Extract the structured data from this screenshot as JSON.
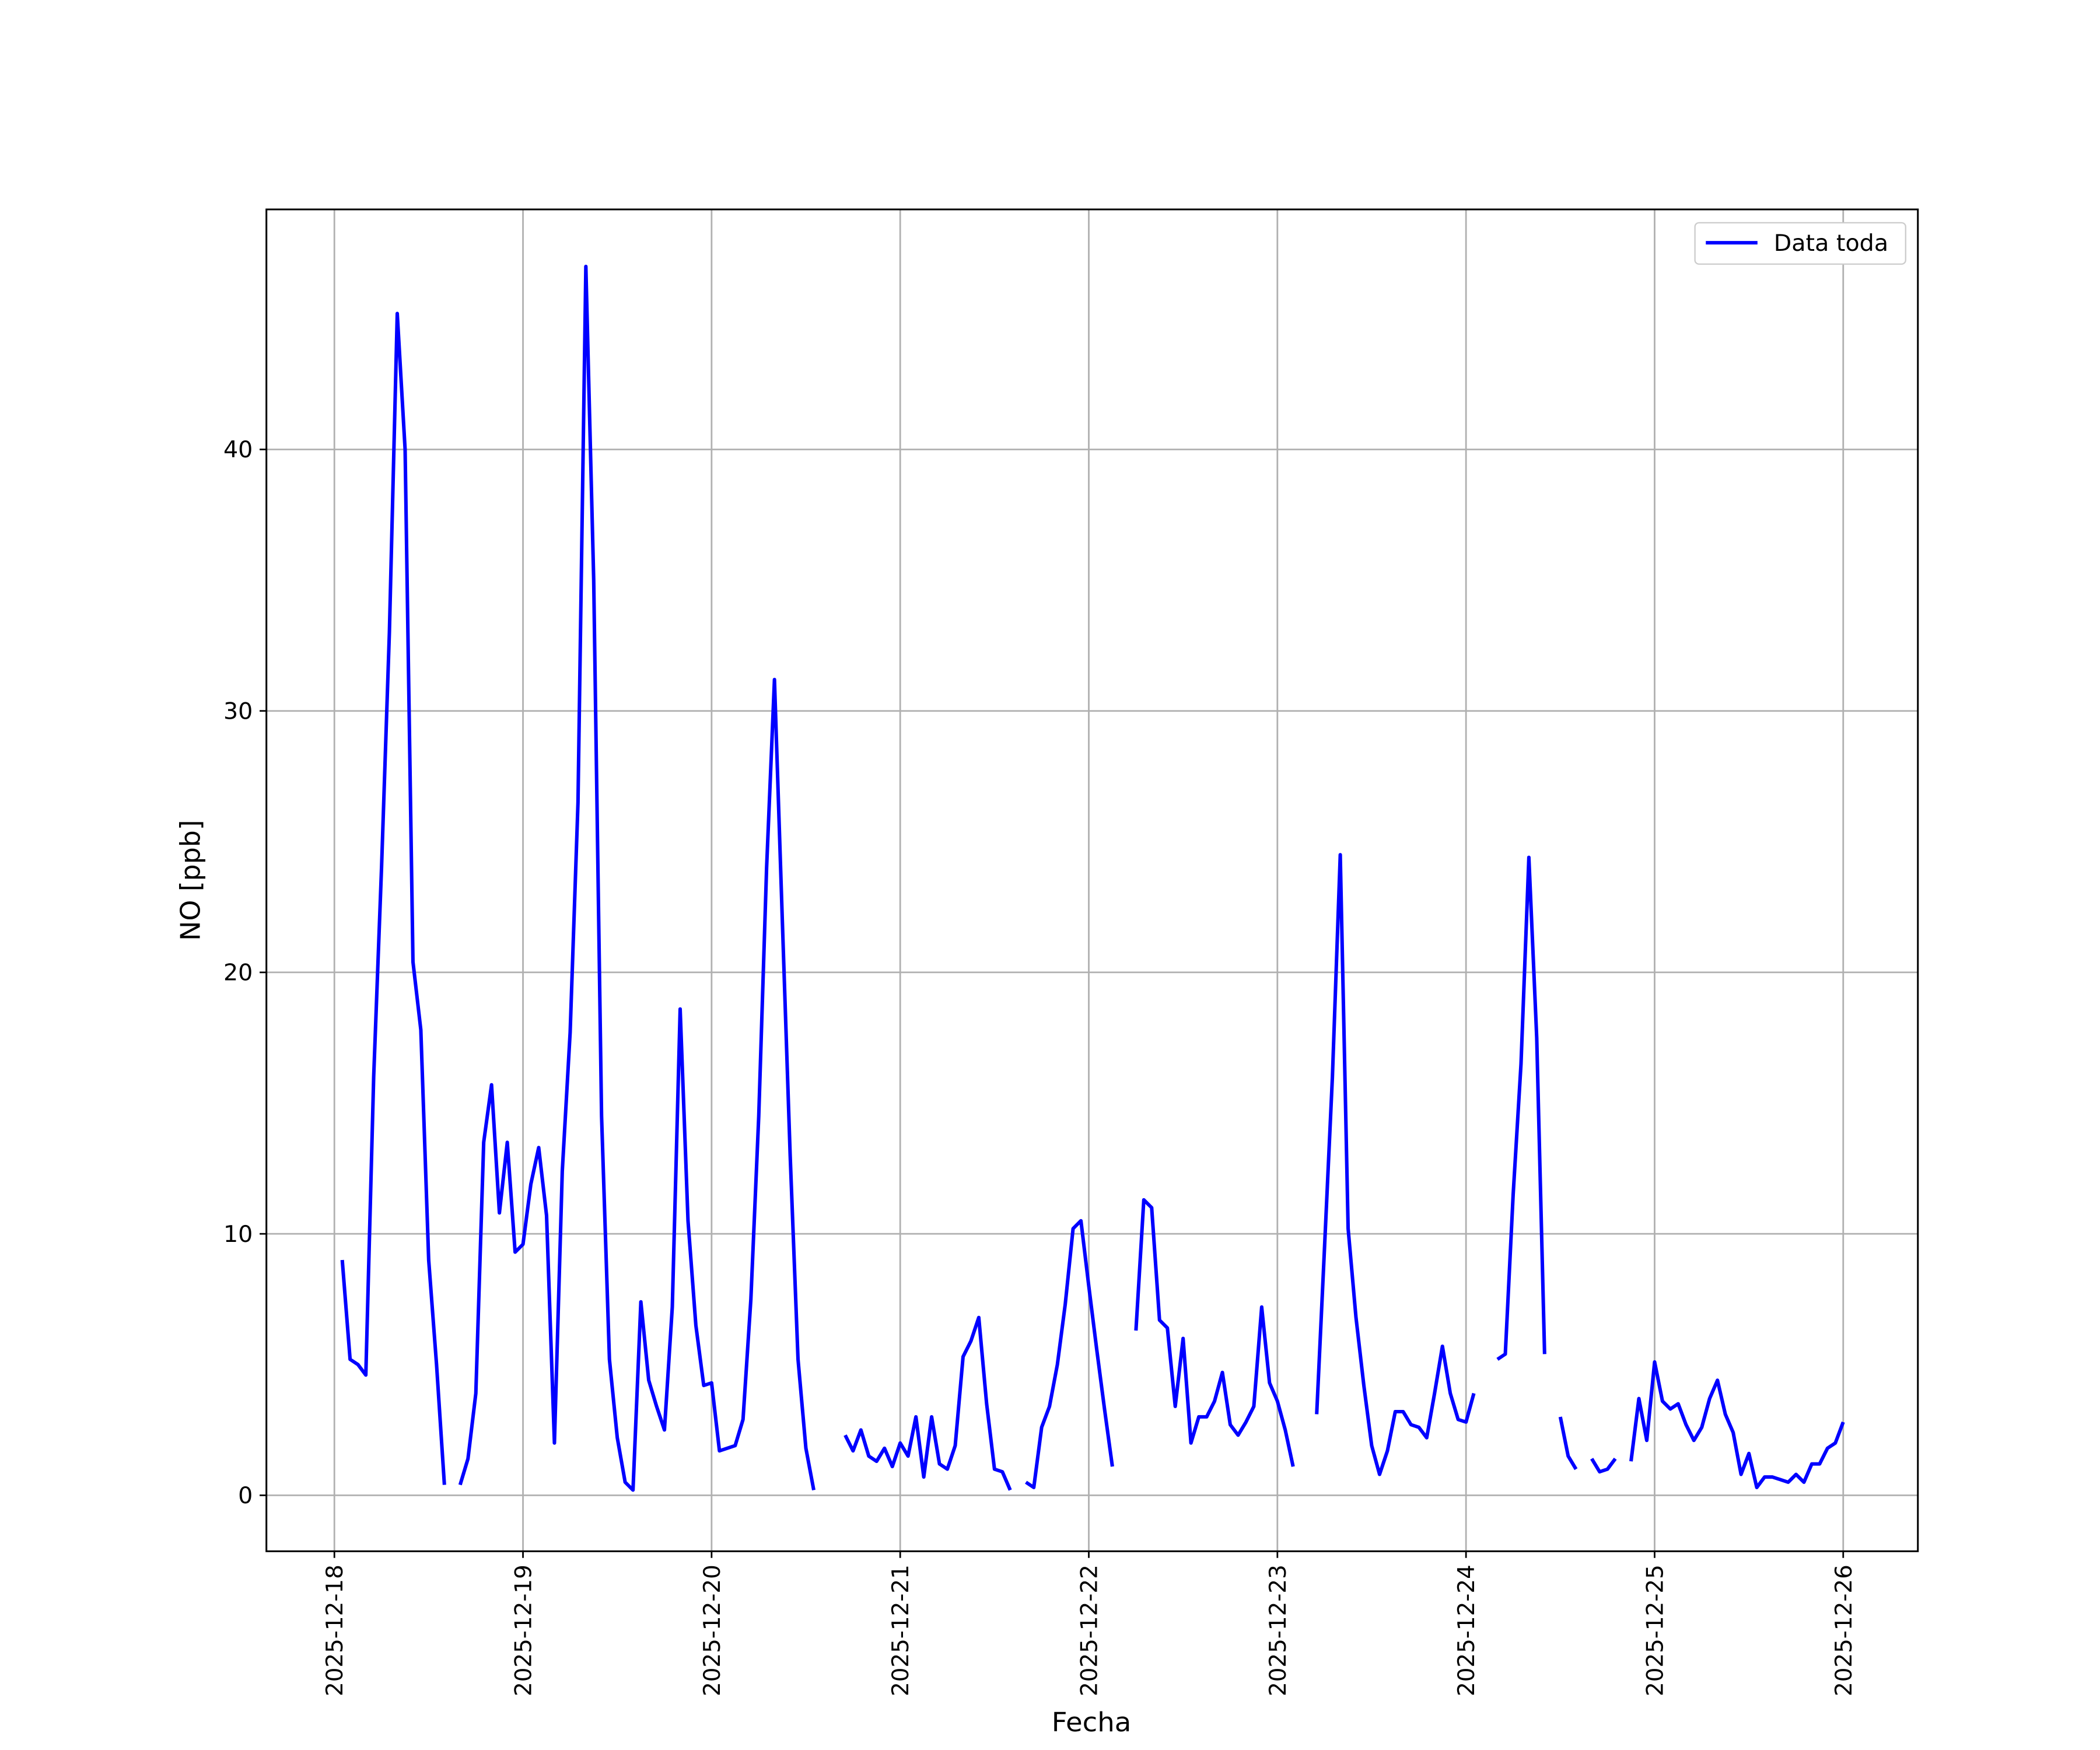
{
  "chart_data": {
    "type": "line",
    "xlabel": "Fecha",
    "ylabel": "NO [ppb]",
    "xlim": [
      "2025-12-17 15:21",
      "2025-12-26 09:30"
    ],
    "xticks": [
      "2025-12-18",
      "2025-12-19",
      "2025-12-20",
      "2025-12-21",
      "2025-12-22",
      "2025-12-23",
      "2025-12-24",
      "2025-12-25",
      "2025-12-26"
    ],
    "ylim": [
      -2.14,
      49.18
    ],
    "yticks": [
      0,
      10,
      20,
      30,
      40
    ],
    "grid": true,
    "legend": "upper right",
    "x": [
      "2025-12-18 01:00",
      "2025-12-18 02:00",
      "2025-12-18 03:00",
      "2025-12-18 04:00",
      "2025-12-18 05:00",
      "2025-12-18 06:00",
      "2025-12-18 07:00",
      "2025-12-18 08:00",
      "2025-12-18 09:00",
      "2025-12-18 10:00",
      "2025-12-18 11:00",
      "2025-12-18 12:00",
      "2025-12-18 13:00",
      "2025-12-18 14:00",
      "2025-12-18 15:00",
      "2025-12-18 16:00",
      "2025-12-18 17:00",
      "2025-12-18 18:00",
      "2025-12-18 19:00",
      "2025-12-18 20:00",
      "2025-12-18 21:00",
      "2025-12-18 22:00",
      "2025-12-18 23:00",
      "2025-12-19 00:00",
      "2025-12-19 01:00",
      "2025-12-19 02:00",
      "2025-12-19 03:00",
      "2025-12-19 04:00",
      "2025-12-19 05:00",
      "2025-12-19 06:00",
      "2025-12-19 07:00",
      "2025-12-19 08:00",
      "2025-12-19 09:00",
      "2025-12-19 10:00",
      "2025-12-19 11:00",
      "2025-12-19 12:00",
      "2025-12-19 13:00",
      "2025-12-19 14:00",
      "2025-12-19 15:00",
      "2025-12-19 16:00",
      "2025-12-19 17:00",
      "2025-12-19 18:00",
      "2025-12-19 19:00",
      "2025-12-19 20:00",
      "2025-12-19 21:00",
      "2025-12-19 22:00",
      "2025-12-19 23:00",
      "2025-12-20 00:00",
      "2025-12-20 01:00",
      "2025-12-20 02:00",
      "2025-12-20 03:00",
      "2025-12-20 04:00",
      "2025-12-20 05:00",
      "2025-12-20 06:00",
      "2025-12-20 07:00",
      "2025-12-20 08:00",
      "2025-12-20 09:00",
      "2025-12-20 10:00",
      "2025-12-20 11:00",
      "2025-12-20 12:00",
      "2025-12-20 13:00",
      "2025-12-20 14:00",
      "2025-12-20 15:00",
      "2025-12-20 16:00",
      "2025-12-20 17:00",
      "2025-12-20 18:00",
      "2025-12-20 19:00",
      "2025-12-20 20:00",
      "2025-12-20 21:00",
      "2025-12-20 22:00",
      "2025-12-20 23:00",
      "2025-12-21 00:00",
      "2025-12-21 01:00",
      "2025-12-21 02:00",
      "2025-12-21 03:00",
      "2025-12-21 04:00",
      "2025-12-21 05:00",
      "2025-12-21 06:00",
      "2025-12-21 07:00",
      "2025-12-21 08:00",
      "2025-12-21 09:00",
      "2025-12-21 10:00",
      "2025-12-21 11:00",
      "2025-12-21 12:00",
      "2025-12-21 13:00",
      "2025-12-21 14:00",
      "2025-12-21 15:00",
      "2025-12-21 16:00",
      "2025-12-21 17:00",
      "2025-12-21 18:00",
      "2025-12-21 19:00",
      "2025-12-21 20:00",
      "2025-12-21 21:00",
      "2025-12-21 22:00",
      "2025-12-21 23:00",
      "2025-12-22 00:00",
      "2025-12-22 01:00",
      "2025-12-22 02:00",
      "2025-12-22 03:00",
      "2025-12-22 04:00",
      "2025-12-22 05:00",
      "2025-12-22 06:00",
      "2025-12-22 07:00",
      "2025-12-22 08:00",
      "2025-12-22 09:00",
      "2025-12-22 10:00",
      "2025-12-22 11:00",
      "2025-12-22 12:00",
      "2025-12-22 13:00",
      "2025-12-22 14:00",
      "2025-12-22 15:00",
      "2025-12-22 16:00",
      "2025-12-22 17:00",
      "2025-12-22 18:00",
      "2025-12-22 19:00",
      "2025-12-22 20:00",
      "2025-12-22 21:00",
      "2025-12-22 22:00",
      "2025-12-22 23:00",
      "2025-12-23 00:00",
      "2025-12-23 01:00",
      "2025-12-23 02:00",
      "2025-12-23 03:00",
      "2025-12-23 04:00",
      "2025-12-23 05:00",
      "2025-12-23 06:00",
      "2025-12-23 07:00",
      "2025-12-23 08:00",
      "2025-12-23 09:00",
      "2025-12-23 10:00",
      "2025-12-23 11:00",
      "2025-12-23 12:00",
      "2025-12-23 13:00",
      "2025-12-23 14:00",
      "2025-12-23 15:00",
      "2025-12-23 16:00",
      "2025-12-23 17:00",
      "2025-12-23 18:00",
      "2025-12-23 19:00",
      "2025-12-23 20:00",
      "2025-12-23 21:00",
      "2025-12-23 22:00",
      "2025-12-23 23:00",
      "2025-12-24 00:00",
      "2025-12-24 01:00",
      "2025-12-24 02:00",
      "2025-12-24 03:00",
      "2025-12-24 04:00",
      "2025-12-24 05:00",
      "2025-12-24 06:00",
      "2025-12-24 07:00",
      "2025-12-24 08:00",
      "2025-12-24 09:00",
      "2025-12-24 10:00",
      "2025-12-24 11:00",
      "2025-12-24 12:00",
      "2025-12-24 13:00",
      "2025-12-24 14:00",
      "2025-12-24 15:00",
      "2025-12-24 16:00",
      "2025-12-24 17:00",
      "2025-12-24 18:00",
      "2025-12-24 19:00",
      "2025-12-24 20:00",
      "2025-12-24 21:00",
      "2025-12-24 22:00",
      "2025-12-24 23:00",
      "2025-12-25 00:00",
      "2025-12-25 01:00",
      "2025-12-25 02:00",
      "2025-12-25 03:00",
      "2025-12-25 04:00",
      "2025-12-25 05:00",
      "2025-12-25 06:00",
      "2025-12-25 07:00",
      "2025-12-25 08:00",
      "2025-12-25 09:00",
      "2025-12-25 10:00",
      "2025-12-25 11:00",
      "2025-12-25 12:00",
      "2025-12-25 13:00",
      "2025-12-25 14:00",
      "2025-12-25 15:00",
      "2025-12-25 16:00",
      "2025-12-25 17:00",
      "2025-12-25 18:00",
      "2025-12-25 19:00",
      "2025-12-25 20:00",
      "2025-12-25 21:00",
      "2025-12-25 22:00",
      "2025-12-25 23:00",
      "2025-12-26 00:00"
    ],
    "series": [
      {
        "name": "Data toda",
        "color": "#0000ff",
        "values": [
          9.0,
          5.2,
          5.0,
          4.6,
          16,
          24,
          33,
          45.2,
          40,
          20.4,
          17.8,
          9,
          5,
          0.4,
          null,
          0.4,
          1.4,
          3.9,
          13.5,
          15.7,
          10.8,
          13.5,
          9.3,
          9.6,
          11.9,
          13.3,
          10.7,
          2.0,
          12.4,
          17.7,
          26.5,
          47.0,
          35,
          14.5,
          5.2,
          2.2,
          0.5,
          0.2,
          7.4,
          4.4,
          3.4,
          2.5,
          7.2,
          18.6,
          10.5,
          6.5,
          4.2,
          4.3,
          1.7,
          1.8,
          1.9,
          2.9,
          7.5,
          14.5,
          24,
          31.2,
          22,
          13,
          5.2,
          1.8,
          0.2,
          null,
          null,
          null,
          2.3,
          1.7,
          2.5,
          1.5,
          1.3,
          1.8,
          1.1,
          2.0,
          1.5,
          3.0,
          0.7,
          3.0,
          1.2,
          1.0,
          1.9,
          5.3,
          5.9,
          6.8,
          3.5,
          1.0,
          0.9,
          0.2,
          null,
          0.5,
          0.3,
          2.6,
          3.4,
          5.0,
          7.3,
          10.2,
          10.5,
          8.0,
          5.6,
          3.3,
          1.1,
          null,
          null,
          6.3,
          11.3,
          11.0,
          6.7,
          6.4,
          3.4,
          6.0,
          2.0,
          3.0,
          3.0,
          3.6,
          4.7,
          2.7,
          2.3,
          2.8,
          3.4,
          7.2,
          4.3,
          3.6,
          2.5,
          1.1,
          null,
          null,
          3.1,
          9.5,
          16,
          24.5,
          10.2,
          6.8,
          4.2,
          1.9,
          0.8,
          1.7,
          3.2,
          3.2,
          2.7,
          2.6,
          2.2,
          3.9,
          5.7,
          3.9,
          2.9,
          2.8,
          3.9,
          null,
          null,
          5.2,
          5.4,
          11.5,
          16.5,
          24.4,
          17.5,
          5.4,
          null,
          3.0,
          1.5,
          1.0,
          null,
          1.4,
          0.9,
          1.0,
          1.4,
          null,
          1.3,
          3.7,
          2.1,
          5.1,
          3.6,
          3.3,
          3.5,
          2.7,
          2.1,
          2.6,
          3.7,
          4.4,
          3.1,
          2.4,
          0.8,
          1.6,
          0.3,
          0.7,
          0.7,
          0.6,
          0.5,
          0.8,
          0.5,
          1.2,
          1.2,
          1.8,
          2.0,
          2.8
        ]
      }
    ]
  }
}
